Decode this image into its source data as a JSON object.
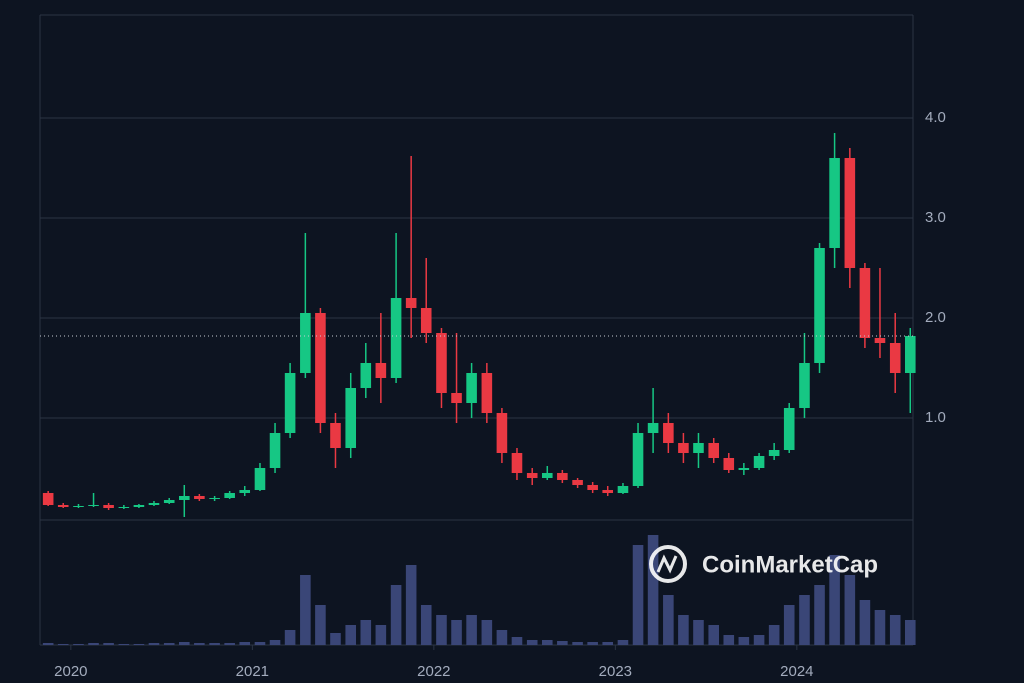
{
  "chart_data": {
    "type": "candlestick",
    "x": [
      2019.875,
      2019.958,
      2020.042,
      2020.125,
      2020.208,
      2020.292,
      2020.375,
      2020.458,
      2020.542,
      2020.625,
      2020.708,
      2020.792,
      2020.875,
      2020.958,
      2021.042,
      2021.125,
      2021.208,
      2021.292,
      2021.375,
      2021.458,
      2021.542,
      2021.625,
      2021.708,
      2021.792,
      2021.875,
      2021.958,
      2022.042,
      2022.125,
      2022.208,
      2022.292,
      2022.375,
      2022.458,
      2022.542,
      2022.625,
      2022.708,
      2022.792,
      2022.875,
      2022.958,
      2023.042,
      2023.125,
      2023.208,
      2023.292,
      2023.375,
      2023.458,
      2023.542,
      2023.625,
      2023.708,
      2023.792,
      2023.875,
      2023.958,
      2024.042,
      2024.125,
      2024.208,
      2024.292,
      2024.375,
      2024.458,
      2024.542,
      2024.625
    ],
    "open": [
      0.25,
      0.13,
      0.11,
      0.12,
      0.13,
      0.1,
      0.11,
      0.13,
      0.15,
      0.18,
      0.22,
      0.19,
      0.2,
      0.25,
      0.28,
      0.5,
      0.85,
      1.45,
      2.05,
      0.95,
      0.7,
      1.3,
      1.55,
      1.4,
      2.2,
      2.1,
      1.85,
      1.25,
      1.15,
      1.45,
      1.05,
      0.65,
      0.45,
      0.4,
      0.45,
      0.38,
      0.33,
      0.28,
      0.25,
      0.32,
      0.85,
      0.95,
      0.75,
      0.65,
      0.75,
      0.6,
      0.48,
      0.5,
      0.62,
      0.68,
      1.1,
      1.55,
      2.7,
      3.6,
      2.5,
      1.8,
      1.75,
      1.45
    ],
    "high": [
      0.27,
      0.15,
      0.14,
      0.25,
      0.15,
      0.13,
      0.14,
      0.17,
      0.2,
      0.33,
      0.24,
      0.22,
      0.27,
      0.32,
      0.55,
      0.95,
      1.55,
      2.85,
      2.1,
      1.05,
      1.45,
      1.75,
      2.05,
      2.85,
      3.62,
      2.6,
      1.9,
      1.85,
      1.55,
      1.55,
      1.1,
      0.7,
      0.5,
      0.52,
      0.48,
      0.4,
      0.36,
      0.32,
      0.35,
      0.95,
      1.3,
      1.05,
      0.85,
      0.85,
      0.8,
      0.65,
      0.55,
      0.65,
      0.75,
      1.15,
      1.85,
      2.75,
      3.85,
      3.7,
      2.55,
      2.5,
      2.05,
      1.9
    ],
    "low": [
      0.12,
      0.1,
      0.1,
      0.11,
      0.08,
      0.09,
      0.1,
      0.12,
      0.14,
      0.01,
      0.17,
      0.17,
      0.19,
      0.22,
      0.27,
      0.45,
      0.8,
      1.4,
      0.85,
      0.5,
      0.6,
      1.2,
      1.15,
      1.35,
      1.8,
      1.75,
      1.1,
      0.95,
      1.0,
      0.95,
      0.55,
      0.38,
      0.33,
      0.38,
      0.35,
      0.3,
      0.25,
      0.22,
      0.24,
      0.3,
      0.65,
      0.65,
      0.55,
      0.5,
      0.55,
      0.45,
      0.43,
      0.48,
      0.58,
      0.65,
      1.0,
      1.45,
      2.5,
      2.3,
      1.7,
      1.6,
      1.25,
      1.05
    ],
    "close": [
      0.13,
      0.11,
      0.12,
      0.13,
      0.1,
      0.11,
      0.13,
      0.15,
      0.18,
      0.22,
      0.19,
      0.2,
      0.25,
      0.28,
      0.5,
      0.85,
      1.45,
      2.05,
      0.95,
      0.7,
      1.3,
      1.55,
      1.4,
      2.2,
      2.1,
      1.85,
      1.25,
      1.15,
      1.45,
      1.05,
      0.65,
      0.45,
      0.4,
      0.45,
      0.38,
      0.33,
      0.28,
      0.25,
      0.32,
      0.85,
      0.95,
      0.75,
      0.65,
      0.75,
      0.6,
      0.48,
      0.5,
      0.62,
      0.68,
      1.1,
      1.55,
      2.7,
      3.6,
      2.5,
      1.8,
      1.75,
      1.45,
      1.82
    ],
    "volume": [
      2,
      1,
      1,
      2,
      2,
      1,
      1,
      2,
      2,
      3,
      2,
      2,
      2,
      3,
      3,
      5,
      15,
      70,
      40,
      12,
      20,
      25,
      20,
      60,
      80,
      40,
      30,
      25,
      30,
      25,
      15,
      8,
      5,
      5,
      4,
      3,
      3,
      3,
      5,
      100,
      110,
      50,
      30,
      25,
      20,
      10,
      8,
      10,
      20,
      40,
      50,
      60,
      90,
      70,
      45,
      35,
      30,
      25
    ],
    "xlim": [
      2019.83,
      2024.64
    ],
    "xticks": [
      2020,
      2021,
      2022,
      2023,
      2024
    ],
    "ylim": [
      0,
      5.03
    ],
    "yticks": [
      {
        "value": 1,
        "label": "1.0"
      },
      {
        "value": 2,
        "label": "2.0"
      },
      {
        "value": 3,
        "label": "3.0"
      },
      {
        "value": 4,
        "label": "4.0"
      }
    ],
    "volume_lim": [
      0,
      120
    ],
    "last_price": 1.82,
    "grid": true,
    "up_color": "#16c784",
    "down_color": "#ea3943",
    "volume_color": "#3a4677",
    "watermark": "CoinMarketCap"
  }
}
